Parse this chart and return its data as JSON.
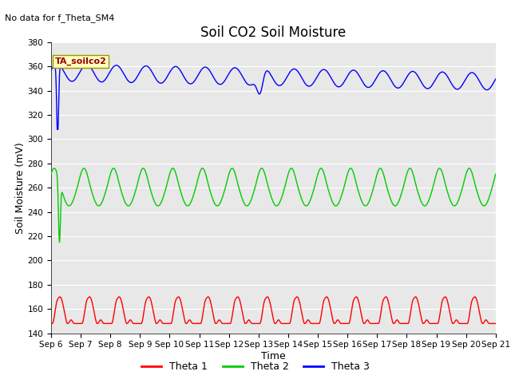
{
  "title": "Soil CO2 Soil Moisture",
  "xlabel": "Time",
  "ylabel": "Soil Moisture (mV)",
  "no_data_label": "No data for f_Theta_SM4",
  "annotation_label": "TA_soilco2",
  "ylim": [
    140,
    380
  ],
  "yticks": [
    140,
    160,
    180,
    200,
    220,
    240,
    260,
    280,
    300,
    320,
    340,
    360,
    380
  ],
  "xlim": [
    0,
    15
  ],
  "bg_color": "#d9d9d9",
  "plot_bg_color": "#e8e8e8",
  "legend_bg_color": "#ffffff",
  "grid_color": "#ffffff",
  "colors": {
    "theta1": "#ff0000",
    "theta2": "#00cc00",
    "theta3": "#0000ff"
  },
  "legend_labels": [
    "Theta 1",
    "Theta 2",
    "Theta 3"
  ],
  "xtick_labels": [
    "Sep 6",
    "Sep 7",
    "Sep 8",
    "Sep 9",
    "Sep 10",
    "Sep 11",
    "Sep 12",
    "Sep 13",
    "Sep 14",
    "Sep 15",
    "Sep 16",
    "Sep 17",
    "Sep 18",
    "Sep 19",
    "Sep 20",
    "Sep 21"
  ],
  "title_fontsize": 12,
  "label_fontsize": 9,
  "tick_fontsize": 7.5,
  "annotation_fontsize": 8,
  "no_data_fontsize": 8
}
